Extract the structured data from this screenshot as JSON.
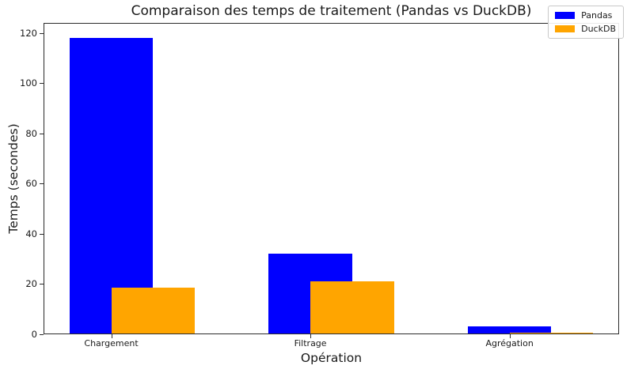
{
  "chart_data": {
    "type": "bar",
    "title": "Comparaison des temps de traitement (Pandas vs DuckDB)",
    "xlabel": "Opération",
    "ylabel": "Temps (secondes)",
    "categories": [
      "Chargement",
      "Filtrage",
      "Agrégation"
    ],
    "series": [
      {
        "name": "Pandas",
        "color": "#0000ff",
        "values": [
          118,
          32,
          3
        ]
      },
      {
        "name": "DuckDB",
        "color": "#ffa500",
        "values": [
          18.5,
          21,
          0.5
        ]
      }
    ],
    "ylim": [
      0,
      124
    ],
    "yticks": [
      0,
      20,
      40,
      60,
      80,
      100,
      120
    ],
    "legend_position": "upper right",
    "grid": false,
    "background_color": "#ffffff",
    "spine_color": "#2b2b2b"
  }
}
